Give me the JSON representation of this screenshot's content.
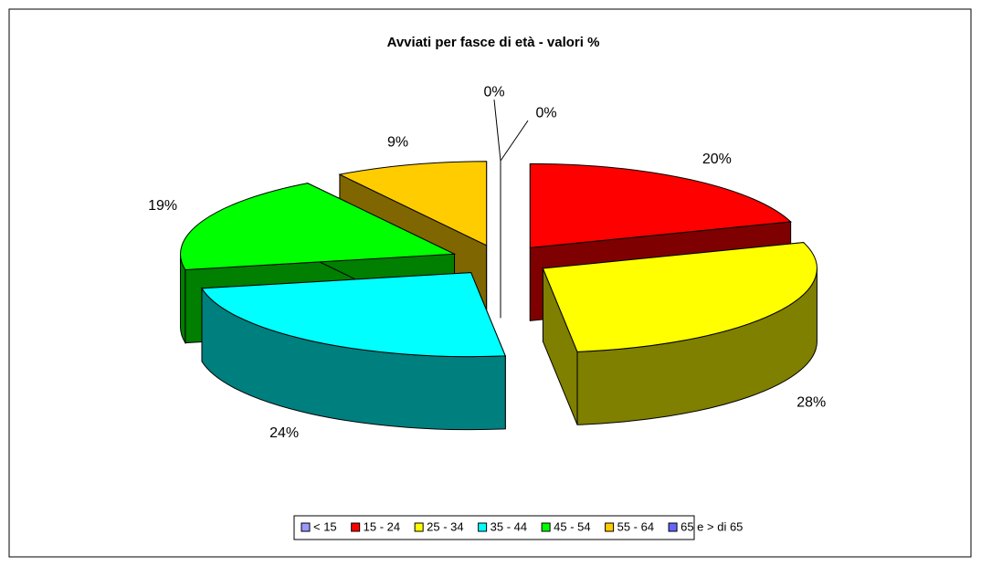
{
  "chart_data": {
    "type": "pie3d",
    "title": "Avviati per fasce di età - valori %",
    "categories": [
      "< 15",
      "15 - 24",
      "25 - 34",
      "35 - 44",
      "45 - 54",
      "55 - 64",
      "65 e > di 65"
    ],
    "values": [
      0,
      20,
      28,
      24,
      19,
      9,
      0
    ],
    "value_labels": [
      "0%",
      "20%",
      "28%",
      "24%",
      "19%",
      "9%",
      "0%"
    ],
    "colors": [
      "#9999ff",
      "#ff0000",
      "#ffff00",
      "#00ffff",
      "#00ff00",
      "#ffcc00",
      "#6666ff"
    ],
    "legend": "bottom"
  }
}
